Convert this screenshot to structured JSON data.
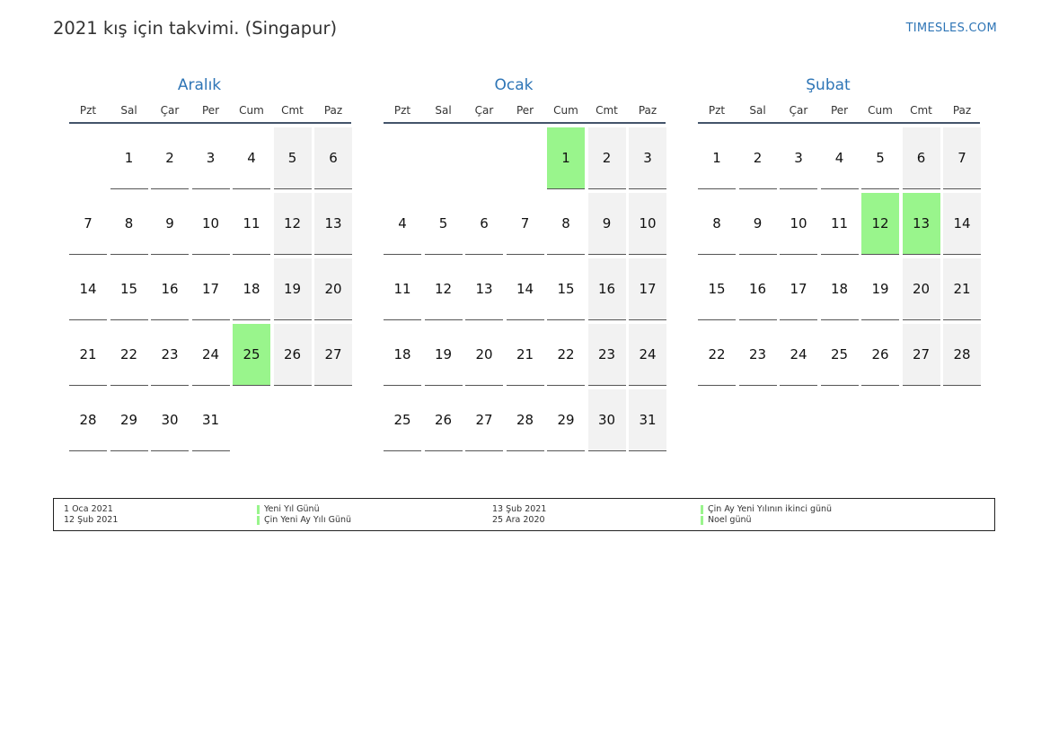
{
  "header": {
    "title": "2021 kış için takvimi. (Singapur)",
    "brand": "TIMESLES.COM"
  },
  "colors": {
    "accent": "#2e75b6",
    "holiday": "#99f58c",
    "weekend": "#f2f2f2",
    "rule": "#44546a"
  },
  "weekdays": [
    "Pzt",
    "Sal",
    "Çar",
    "Per",
    "Cum",
    "Cmt",
    "Paz"
  ],
  "months": [
    {
      "name": "Aralık",
      "offset": 1,
      "days": 31,
      "holidays": [
        25
      ]
    },
    {
      "name": "Ocak",
      "offset": 4,
      "days": 31,
      "holidays": [
        1
      ]
    },
    {
      "name": "Şubat",
      "offset": 0,
      "days": 28,
      "holidays": [
        12,
        13
      ]
    }
  ],
  "legend": {
    "col1": [
      {
        "date": "1 Oca 2021",
        "name": "Yeni Yıl Günü"
      },
      {
        "date": "12 Şub 2021",
        "name": "Çin Yeni Ay Yılı Günü"
      }
    ],
    "col2": [
      {
        "date": "13 Şub 2021",
        "name": "Çin Ay Yeni Yılının ikinci günü"
      },
      {
        "date": "25 Ara 2020",
        "name": "Noel günü"
      }
    ]
  }
}
